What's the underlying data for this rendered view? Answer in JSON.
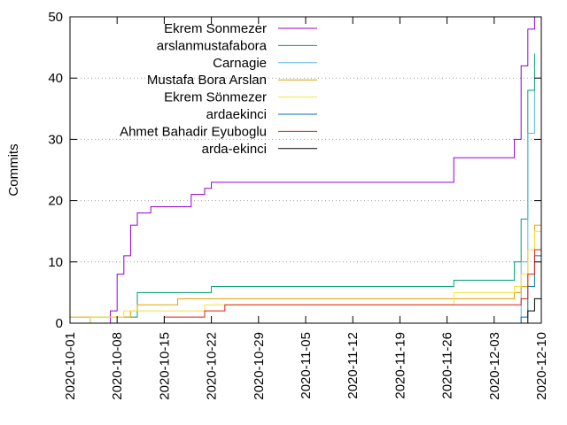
{
  "chart_data": {
    "type": "line",
    "title": "",
    "xlabel": "",
    "ylabel": "Commits",
    "x_axis_type": "date",
    "xlim": [
      "2020-10-01",
      "2020-12-10"
    ],
    "ylim": [
      0,
      50
    ],
    "x_ticks": [
      "2020-10-01",
      "2020-10-08",
      "2020-10-15",
      "2020-10-22",
      "2020-10-29",
      "2020-11-05",
      "2020-11-12",
      "2020-11-19",
      "2020-11-26",
      "2020-12-03",
      "2020-12-10"
    ],
    "y_ticks": [
      0,
      10,
      20,
      30,
      40,
      50
    ],
    "grid": "horizontal dotted",
    "legend_position": "top-left",
    "line_style": "step",
    "series": [
      {
        "name": "Ekrem Sonmezer",
        "color": "#9400d3",
        "points": [
          [
            "2020-10-07",
            0
          ],
          [
            "2020-10-07",
            1
          ],
          [
            "2020-10-07",
            2
          ],
          [
            "2020-10-08",
            3
          ],
          [
            "2020-10-08",
            5
          ],
          [
            "2020-10-08",
            8
          ],
          [
            "2020-10-09",
            10
          ],
          [
            "2020-10-09",
            11
          ],
          [
            "2020-10-10",
            14
          ],
          [
            "2020-10-10",
            15
          ],
          [
            "2020-10-10",
            16
          ],
          [
            "2020-10-11",
            18
          ],
          [
            "2020-10-13",
            19
          ],
          [
            "2020-10-15",
            19
          ],
          [
            "2020-10-19",
            21
          ],
          [
            "2020-10-21",
            22
          ],
          [
            "2020-10-22",
            23
          ],
          [
            "2020-11-27",
            27
          ],
          [
            "2020-12-06",
            28
          ],
          [
            "2020-12-06",
            30
          ],
          [
            "2020-12-07",
            31
          ],
          [
            "2020-12-07",
            34
          ],
          [
            "2020-12-07",
            37
          ],
          [
            "2020-12-07",
            40
          ],
          [
            "2020-12-07",
            42
          ],
          [
            "2020-12-08",
            44
          ],
          [
            "2020-12-08",
            46
          ],
          [
            "2020-12-08",
            48
          ],
          [
            "2020-12-09",
            48
          ],
          [
            "2020-12-09",
            50
          ]
        ]
      },
      {
        "name": "arslanmustafabora",
        "color": "#009e73",
        "points": [
          [
            "2020-10-04",
            0
          ],
          [
            "2020-10-04",
            1
          ],
          [
            "2020-10-11",
            1
          ],
          [
            "2020-10-11",
            5
          ],
          [
            "2020-10-22",
            5
          ],
          [
            "2020-10-22",
            6
          ],
          [
            "2020-11-27",
            6
          ],
          [
            "2020-11-27",
            7
          ],
          [
            "2020-12-06",
            7
          ],
          [
            "2020-12-06",
            9
          ],
          [
            "2020-12-06",
            10
          ],
          [
            "2020-12-07",
            12
          ],
          [
            "2020-12-07",
            14
          ],
          [
            "2020-12-07",
            17
          ],
          [
            "2020-12-08",
            17
          ],
          [
            "2020-12-08",
            22
          ],
          [
            "2020-12-08",
            30
          ],
          [
            "2020-12-08",
            36
          ],
          [
            "2020-12-08",
            38
          ],
          [
            "2020-12-09",
            38
          ],
          [
            "2020-12-09",
            42
          ],
          [
            "2020-12-09",
            44
          ]
        ]
      },
      {
        "name": "Carnagie",
        "color": "#56b4e9",
        "points": [
          [
            "2020-12-07",
            0
          ],
          [
            "2020-12-07",
            10
          ],
          [
            "2020-12-08",
            10
          ],
          [
            "2020-12-08",
            15
          ],
          [
            "2020-12-08",
            22
          ],
          [
            "2020-12-08",
            30
          ],
          [
            "2020-12-08",
            31
          ],
          [
            "2020-12-09",
            33
          ],
          [
            "2020-12-09",
            36
          ],
          [
            "2020-12-09",
            38
          ]
        ]
      },
      {
        "name": "Mustafa Bora Arslan",
        "color": "#e69f00",
        "points": [
          [
            "2020-10-01",
            1
          ],
          [
            "2020-10-10",
            1
          ],
          [
            "2020-10-10",
            2
          ],
          [
            "2020-10-11",
            2
          ],
          [
            "2020-10-11",
            3
          ],
          [
            "2020-10-17",
            3
          ],
          [
            "2020-10-17",
            4
          ],
          [
            "2020-11-25",
            4
          ],
          [
            "2020-11-27",
            4
          ],
          [
            "2020-12-06",
            4
          ],
          [
            "2020-12-06",
            5
          ],
          [
            "2020-12-07",
            6
          ],
          [
            "2020-12-08",
            7
          ],
          [
            "2020-12-08",
            10
          ],
          [
            "2020-12-08",
            12
          ],
          [
            "2020-12-09",
            14
          ],
          [
            "2020-12-09",
            15
          ],
          [
            "2020-12-09",
            16
          ],
          [
            "2020-12-10",
            18
          ]
        ]
      },
      {
        "name": "Ekrem Sönmezer",
        "color": "#f0e442",
        "points": [
          [
            "2020-10-04",
            0
          ],
          [
            "2020-10-04",
            1
          ],
          [
            "2020-10-09",
            1
          ],
          [
            "2020-10-09",
            2
          ],
          [
            "2020-10-21",
            2
          ],
          [
            "2020-10-21",
            3
          ],
          [
            "2020-11-27",
            3
          ],
          [
            "2020-11-27",
            5
          ],
          [
            "2020-12-06",
            5
          ],
          [
            "2020-12-06",
            6
          ],
          [
            "2020-12-07",
            8
          ],
          [
            "2020-12-08",
            10
          ],
          [
            "2020-12-08",
            12
          ],
          [
            "2020-12-09",
            14
          ],
          [
            "2020-12-09",
            15
          ],
          [
            "2020-12-10",
            16
          ]
        ]
      },
      {
        "name": "ardaekinci",
        "color": "#0072b2",
        "points": [
          [
            "2020-10-01",
            0
          ],
          [
            "2020-12-07",
            0
          ],
          [
            "2020-12-07",
            1
          ],
          [
            "2020-12-08",
            3
          ],
          [
            "2020-12-08",
            6
          ],
          [
            "2020-12-09",
            8
          ],
          [
            "2020-12-09",
            10
          ],
          [
            "2020-12-09",
            11
          ],
          [
            "2020-12-10",
            12
          ],
          [
            "2020-12-10",
            13
          ]
        ]
      },
      {
        "name": "Ahmet Bahadir Eyuboglu",
        "color": "#e51e10",
        "points": [
          [
            "2020-10-15",
            0
          ],
          [
            "2020-10-15",
            1
          ],
          [
            "2020-10-19",
            1
          ],
          [
            "2020-10-21",
            2
          ],
          [
            "2020-10-24",
            2
          ],
          [
            "2020-10-24",
            3
          ],
          [
            "2020-12-07",
            3
          ],
          [
            "2020-12-07",
            4
          ],
          [
            "2020-12-08",
            6
          ],
          [
            "2020-12-08",
            8
          ],
          [
            "2020-12-09",
            10
          ],
          [
            "2020-12-09",
            12
          ],
          [
            "2020-12-10",
            13
          ]
        ]
      },
      {
        "name": "arda-ekinci",
        "color": "#000000",
        "points": [
          [
            "2020-12-07",
            0
          ],
          [
            "2020-12-08",
            1
          ],
          [
            "2020-12-08",
            2
          ],
          [
            "2020-12-09",
            3
          ],
          [
            "2020-12-09",
            4
          ],
          [
            "2020-12-10",
            5
          ]
        ]
      }
    ]
  }
}
